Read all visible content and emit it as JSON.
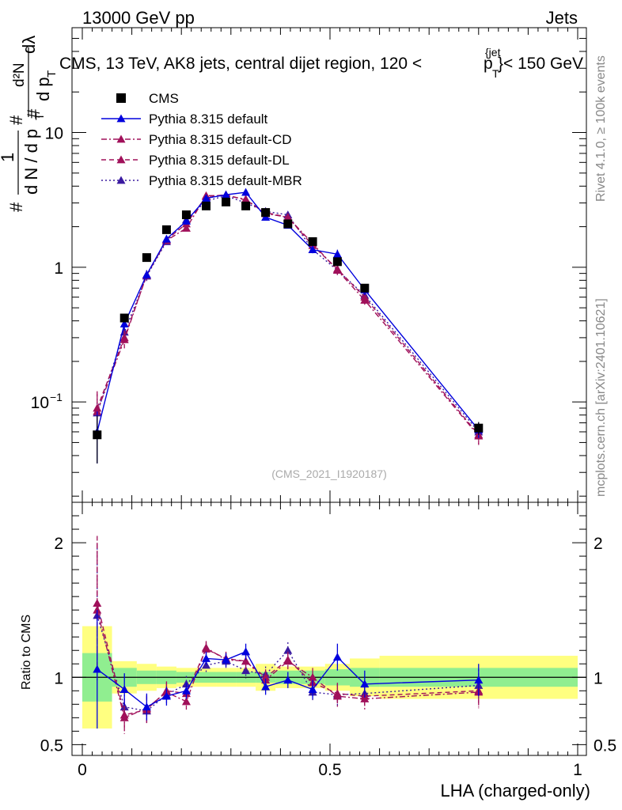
{
  "header": {
    "left": "13000 GeV pp",
    "right": "Jets"
  },
  "side": {
    "rivet": "Rivet 4.1.0, ≥ 100k events",
    "mcplots": "mcplots.cern.ch [arXiv:2401.10621]"
  },
  "top_panel": {
    "title_main": "CMS, 13 TeV, AK8 jets, central dijet region, 120 <",
    "title_p": "p",
    "title_sub": "T",
    "title_sup": "{jet",
    "title_tail": "}< 150 GeV",
    "ylabel_parts": {
      "hash": "#",
      "one": "1",
      "dn": "d N / d p",
      "t": "T",
      "d2n": "d²N",
      "dp": "d p",
      "dl": "dλ"
    },
    "watermark": "(CMS_2021_I1920187)",
    "yticks": [
      {
        "value": 0.1,
        "label": "10",
        "exp": "−1"
      },
      {
        "value": 1,
        "label": "1",
        "exp": ""
      },
      {
        "value": 10,
        "label": "10",
        "exp": ""
      }
    ]
  },
  "bottom_panel": {
    "ylabel": "Ratio to CMS",
    "yticks": [
      {
        "value": 0.5,
        "label": "0.5"
      },
      {
        "value": 1,
        "label": "1"
      },
      {
        "value": 2,
        "label": "2"
      }
    ]
  },
  "xaxis": {
    "label": "LHA (charged-only)",
    "ticks": [
      {
        "value": 0,
        "label": "0"
      },
      {
        "value": 0.5,
        "label": "0.5"
      },
      {
        "value": 1,
        "label": "1"
      }
    ]
  },
  "legend": [
    {
      "name": "CMS",
      "marker": "square",
      "color": "#000000",
      "line": "none"
    },
    {
      "name": "Pythia 8.315 default",
      "marker": "triangle",
      "color": "#0000dd",
      "line": "solid"
    },
    {
      "name": "Pythia 8.315 default-CD",
      "marker": "triangle",
      "color": "#a0105a",
      "line": "dashdot"
    },
    {
      "name": "Pythia 8.315 default-DL",
      "marker": "triangle",
      "color": "#a0105a",
      "line": "dashed"
    },
    {
      "name": "Pythia 8.315 default-MBR",
      "marker": "triangle",
      "color": "#3a1aa0",
      "line": "dotted"
    }
  ],
  "chart_data": {
    "type": "line",
    "title": "CMS, 13 TeV, AK8 jets, central dijet region, 120 < pT jet < 150 GeV",
    "xlabel": "LHA (charged-only)",
    "ylabel": "1/(dN/dpT) d2N/(dpT dlambda)",
    "xlim": [
      0,
      1
    ],
    "ylim": [
      0.018,
      60
    ],
    "yscale": "log",
    "ratio_ylim": [
      0.42,
      2.3
    ],
    "x": [
      0.03,
      0.085,
      0.13,
      0.17,
      0.21,
      0.25,
      0.29,
      0.33,
      0.37,
      0.415,
      0.465,
      0.515,
      0.57,
      0.8
    ],
    "bin_edges": [
      0,
      0.06,
      0.11,
      0.15,
      0.19,
      0.23,
      0.27,
      0.31,
      0.35,
      0.39,
      0.44,
      0.49,
      0.54,
      0.6,
      1.0
    ],
    "data": {
      "name": "CMS",
      "values": [
        0.057,
        0.42,
        1.18,
        1.9,
        2.45,
        2.85,
        3.05,
        2.85,
        2.55,
        2.1,
        1.55,
        1.1,
        0.7,
        0.064
      ],
      "errors": [
        0.022,
        0.03,
        0.06,
        0.08,
        0.09,
        0.1,
        0.1,
        0.1,
        0.09,
        0.08,
        0.07,
        0.06,
        0.04,
        0.007
      ]
    },
    "band": {
      "green_halfwidth": [
        0.18,
        0.07,
        0.05,
        0.05,
        0.04,
        0.04,
        0.04,
        0.04,
        0.04,
        0.05,
        0.05,
        0.06,
        0.07,
        0.07
      ],
      "yellow_halfwidth": [
        0.38,
        0.12,
        0.1,
        0.08,
        0.07,
        0.07,
        0.07,
        0.07,
        0.1,
        0.08,
        0.08,
        0.1,
        0.14,
        0.16
      ]
    },
    "series": [
      {
        "name": "Pythia 8.315 default",
        "values": [
          0.06,
          0.38,
          0.88,
          1.62,
          2.2,
          3.25,
          3.45,
          3.6,
          2.35,
          2.05,
          1.35,
          1.25,
          0.68,
          0.062
        ],
        "errors": [
          0.025,
          0.04,
          0.07,
          0.1,
          0.12,
          0.15,
          0.15,
          0.15,
          0.12,
          0.1,
          0.08,
          0.1,
          0.06,
          0.008
        ],
        "ratio": [
          1.06,
          0.91,
          0.78,
          0.86,
          0.9,
          1.14,
          1.13,
          1.19,
          0.93,
          0.98,
          0.91,
          1.15,
          0.95,
          0.98
        ],
        "ratio_errors": [
          0.44,
          0.12,
          0.1,
          0.07,
          0.06,
          0.05,
          0.05,
          0.06,
          0.06,
          0.06,
          0.07,
          0.1,
          0.1,
          0.12
        ]
      },
      {
        "name": "Pythia 8.315 default-CD",
        "values": [
          0.085,
          0.29,
          0.88,
          1.58,
          1.95,
          3.4,
          3.4,
          3.2,
          2.5,
          2.35,
          1.5,
          0.95,
          0.57,
          0.056
        ],
        "errors": [
          0.03,
          0.04,
          0.07,
          0.1,
          0.12,
          0.15,
          0.15,
          0.15,
          0.12,
          0.1,
          0.08,
          0.08,
          0.05,
          0.008
        ],
        "ratio": [
          1.5,
          0.7,
          0.77,
          0.89,
          0.82,
          1.22,
          1.13,
          1.12,
          0.98,
          1.12,
          1.0,
          0.86,
          0.84,
          0.89
        ],
        "ratio_errors": [
          0.5,
          0.12,
          0.1,
          0.07,
          0.06,
          0.05,
          0.05,
          0.06,
          0.06,
          0.06,
          0.07,
          0.08,
          0.08,
          0.12
        ]
      },
      {
        "name": "Pythia 8.315 default-DL",
        "values": [
          0.09,
          0.3,
          0.87,
          1.6,
          2.1,
          3.35,
          3.45,
          3.15,
          2.55,
          2.35,
          1.45,
          0.97,
          0.6,
          0.057
        ],
        "errors": [
          0.03,
          0.04,
          0.07,
          0.1,
          0.12,
          0.15,
          0.15,
          0.15,
          0.12,
          0.1,
          0.08,
          0.08,
          0.05,
          0.008
        ],
        "ratio": [
          1.55,
          0.72,
          0.76,
          0.9,
          0.88,
          1.21,
          1.14,
          1.12,
          1.0,
          1.13,
          0.96,
          0.88,
          0.86,
          0.9
        ],
        "ratio_errors": [
          0.5,
          0.12,
          0.1,
          0.07,
          0.06,
          0.05,
          0.05,
          0.06,
          0.06,
          0.06,
          0.07,
          0.08,
          0.08,
          0.12
        ]
      },
      {
        "name": "Pythia 8.315 default-MBR",
        "values": [
          0.083,
          0.33,
          0.86,
          1.55,
          2.25,
          3.1,
          3.4,
          3.0,
          2.6,
          2.45,
          1.35,
          0.95,
          0.62,
          0.06
        ],
        "errors": [
          0.03,
          0.04,
          0.07,
          0.1,
          0.12,
          0.15,
          0.15,
          0.15,
          0.12,
          0.1,
          0.08,
          0.08,
          0.05,
          0.008
        ],
        "ratio": [
          1.46,
          0.78,
          0.75,
          0.87,
          0.95,
          1.09,
          1.12,
          1.05,
          1.02,
          1.2,
          0.89,
          0.87,
          0.88,
          0.94
        ],
        "ratio_errors": [
          0.5,
          0.12,
          0.1,
          0.07,
          0.06,
          0.05,
          0.05,
          0.06,
          0.06,
          0.06,
          0.07,
          0.08,
          0.08,
          0.12
        ]
      }
    ]
  }
}
